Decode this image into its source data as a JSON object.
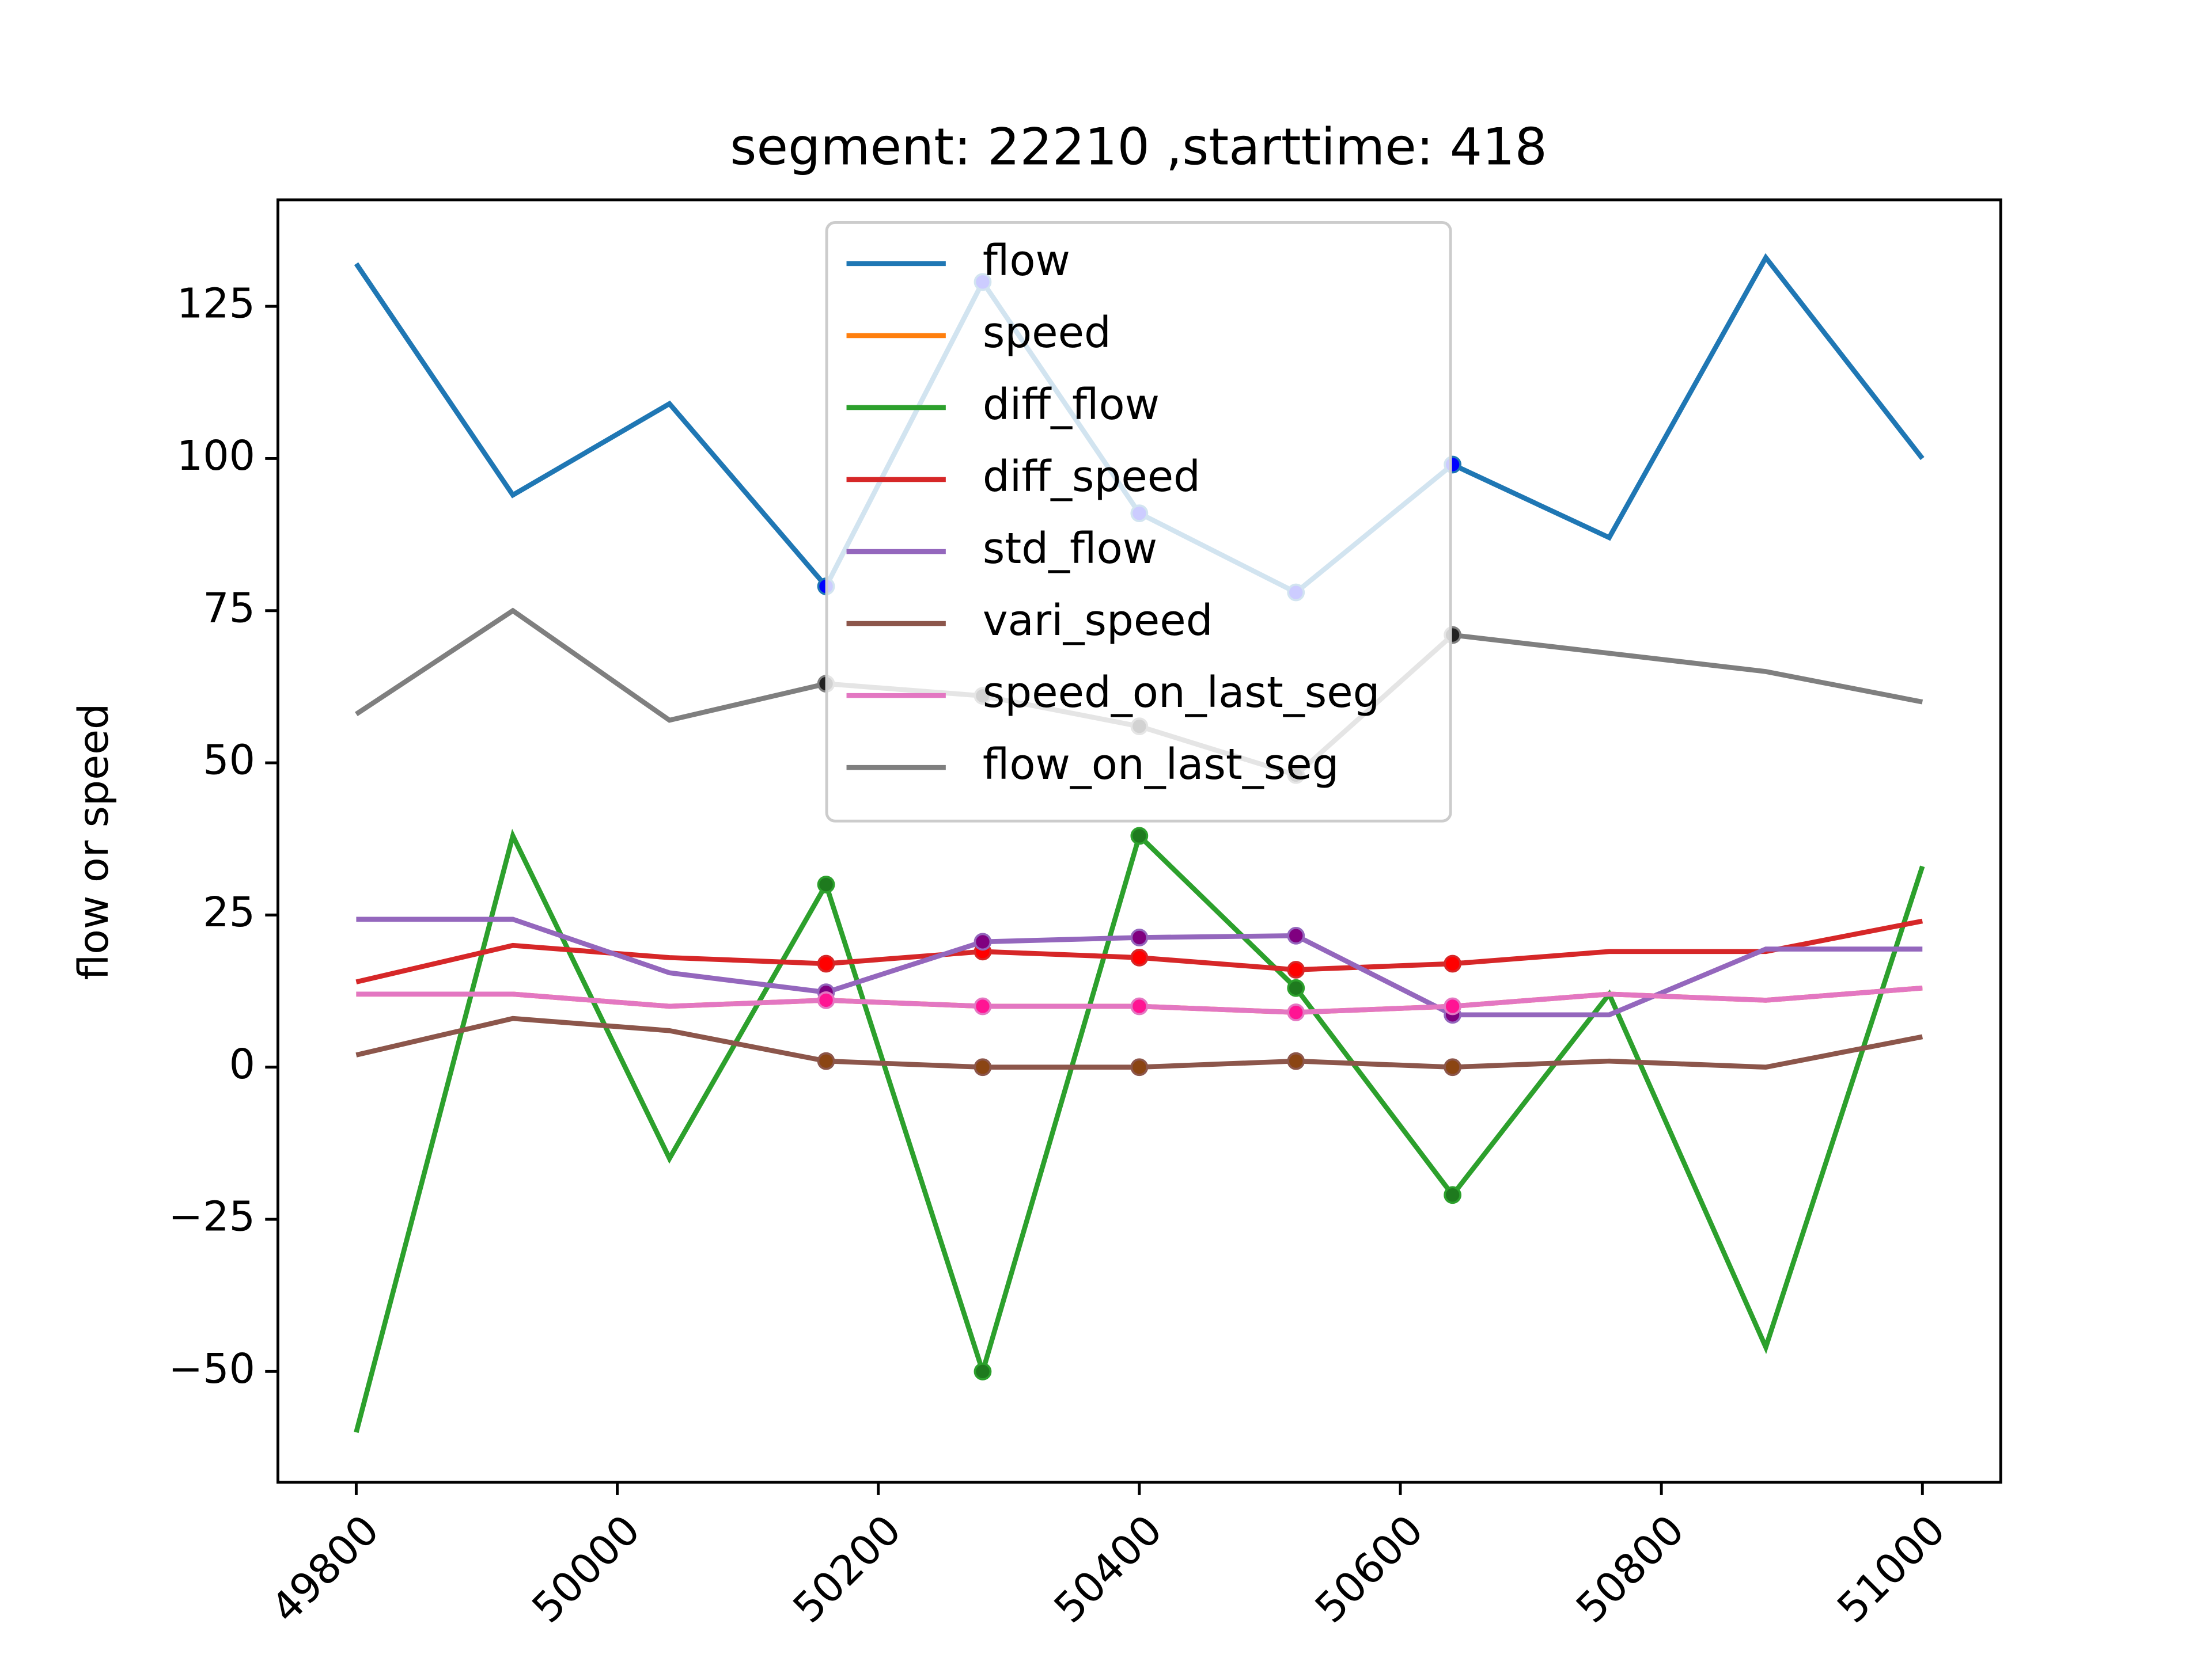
{
  "chart_data": {
    "type": "line",
    "title": "segment: 22210 ,starttime: 418",
    "ylabel": "flow or speed",
    "x": [
      49800,
      49920,
      50040,
      50160,
      50280,
      50400,
      50520,
      50640,
      50760,
      50880,
      51000
    ],
    "series": [
      {
        "name": "flow",
        "color": "#1f77b4",
        "marker_color": "#0000ff",
        "values": [
          132,
          94,
          109,
          79,
          129,
          91,
          78,
          99,
          87,
          133,
          100
        ]
      },
      {
        "name": "speed",
        "color": "#ff7f0e",
        "values": [
          12,
          12,
          10,
          11,
          10,
          10,
          9,
          10,
          12,
          11,
          13
        ]
      },
      {
        "name": "diff_flow",
        "color": "#2ca02c",
        "marker_color": "#1e7a1e",
        "values": [
          -60,
          38,
          -15,
          30,
          -50,
          38,
          13,
          -21,
          12,
          -46,
          33
        ]
      },
      {
        "name": "diff_speed",
        "color": "#d62728",
        "marker_color": "#ff0000",
        "values": [
          14,
          20,
          18,
          17,
          19,
          18,
          16,
          17,
          19,
          19,
          24
        ]
      },
      {
        "name": "std_flow",
        "color": "#9467bd",
        "marker_color": "#800080",
        "values": [
          24.3,
          24.3,
          15.5,
          12.3,
          20.6,
          21.3,
          21.6,
          8.6,
          8.6,
          19.4,
          19.4
        ]
      },
      {
        "name": "vari_speed",
        "color": "#8c564b",
        "marker_color": "#8b4513",
        "values": [
          2,
          8,
          6,
          1,
          0,
          0,
          1,
          0,
          1,
          0,
          5
        ]
      },
      {
        "name": "speed_on_last_seg",
        "color": "#e377c2",
        "marker_color": "#ff1493",
        "values": [
          12,
          12,
          10,
          11,
          10,
          10,
          9,
          10,
          12,
          11,
          13
        ]
      },
      {
        "name": "flow_on_last_seg",
        "color": "#7f7f7f",
        "marker_color": "#222222",
        "values": [
          58,
          75,
          57,
          63,
          61,
          56,
          48,
          71,
          68,
          65,
          60
        ]
      }
    ],
    "markers": {
      "x": [
        50160,
        50280,
        50400,
        50520,
        50640
      ]
    },
    "xlim": [
      49740,
      51060
    ],
    "xticks": [
      49800,
      50000,
      50200,
      50400,
      50600,
      50800,
      51000
    ],
    "ylim": [
      -68.2,
      142.5
    ],
    "yticks": [
      {
        "value": -50,
        "label": "−50"
      },
      {
        "value": -25,
        "label": "−25"
      },
      0,
      25,
      50,
      75,
      100,
      125
    ],
    "legend": "upper center",
    "grid": false
  }
}
